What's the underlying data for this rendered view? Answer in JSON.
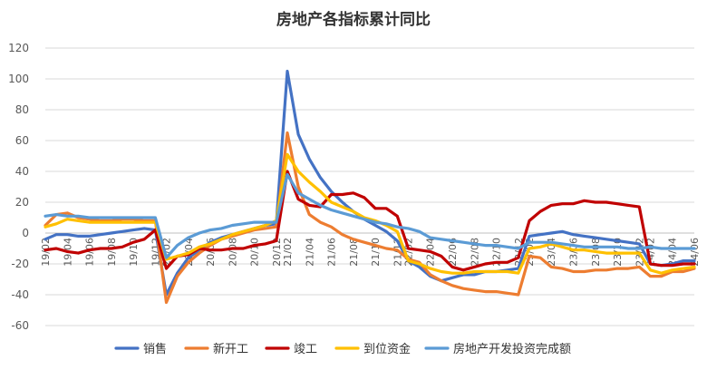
{
  "chart_data": {
    "type": "line",
    "title": "房地产各指标累计同比",
    "ylim": [
      -60,
      120
    ],
    "yticks": [
      -60,
      -40,
      -20,
      0,
      20,
      40,
      60,
      80,
      100,
      120
    ],
    "grid": true,
    "legend_position": "bottom",
    "x_labels": [
      "19/02",
      "19/04",
      "19/06",
      "19/08",
      "19/10",
      "19/12",
      "20/02",
      "20/04",
      "20/06",
      "20/08",
      "20/10",
      "20/12",
      "21/02",
      "21/04",
      "21/06",
      "21/08",
      "21/10",
      "21/12",
      "22/02",
      "22/04",
      "22/06",
      "22/08",
      "22/10",
      "22/12",
      "23/02",
      "23/04",
      "23/06",
      "23/08",
      "23/10",
      "23/12",
      "24/02",
      "24/04",
      "24/06"
    ],
    "x": [
      "19/02",
      "19/03",
      "19/04",
      "19/05",
      "19/06",
      "19/07",
      "19/08",
      "19/09",
      "19/10",
      "19/11",
      "19/12",
      "20/02",
      "20/03",
      "20/04",
      "20/05",
      "20/06",
      "20/07",
      "20/08",
      "20/09",
      "20/10",
      "20/11",
      "20/12",
      "21/02",
      "21/03",
      "21/04",
      "21/05",
      "21/06",
      "21/07",
      "21/08",
      "21/09",
      "21/10",
      "21/11",
      "21/12",
      "22/02",
      "22/03",
      "22/04",
      "22/05",
      "22/06",
      "22/07",
      "22/08",
      "22/09",
      "22/10",
      "22/11",
      "22/12",
      "23/02",
      "23/03",
      "23/04",
      "23/05",
      "23/06",
      "23/07",
      "23/08",
      "23/09",
      "23/10",
      "23/11",
      "23/12",
      "24/02",
      "24/03",
      "24/04",
      "24/05",
      "24/06"
    ],
    "series": [
      {
        "name": "销售",
        "color": "#4472C4",
        "values": [
          -4,
          -1,
          -1,
          -2,
          -2,
          -1,
          0,
          1,
          2,
          3,
          2,
          -40,
          -26,
          -16,
          -11,
          -6,
          -3,
          -1,
          1,
          3,
          5,
          6,
          105,
          64,
          48,
          36,
          27,
          20,
          14,
          9,
          5,
          1,
          -5,
          -18,
          -22,
          -28,
          -31,
          -29,
          -27,
          -27,
          -25,
          -25,
          -24,
          -23,
          -2,
          -1,
          0,
          1,
          -1,
          -2,
          -3,
          -4,
          -5,
          -6,
          -7,
          -20,
          -21,
          -20,
          -18,
          -18
        ]
      },
      {
        "name": "新开工",
        "color": "#ED7D31",
        "values": [
          5,
          12,
          13,
          10,
          9,
          8,
          8,
          9,
          9,
          8,
          8,
          -45,
          -28,
          -19,
          -13,
          -8,
          -4,
          -2,
          0,
          2,
          3,
          4,
          65,
          30,
          12,
          7,
          4,
          -1,
          -4,
          -6,
          -8,
          -10,
          -11,
          -17,
          -19,
          -27,
          -31,
          -34,
          -36,
          -37,
          -38,
          -38,
          -39,
          -40,
          -15,
          -16,
          -22,
          -23,
          -25,
          -25,
          -24,
          -24,
          -23,
          -23,
          -22,
          -28,
          -28,
          -25,
          -25,
          -23
        ]
      },
      {
        "name": "竣工",
        "color": "#C00000",
        "values": [
          -11,
          -10,
          -12,
          -13,
          -11,
          -10,
          -10,
          -9,
          -6,
          -4,
          2,
          -23,
          -15,
          -14,
          -10,
          -11,
          -11,
          -10,
          -10,
          -8,
          -7,
          -5,
          40,
          22,
          18,
          17,
          25,
          25,
          26,
          23,
          16,
          16,
          11,
          -10,
          -11,
          -12,
          -15,
          -22,
          -24,
          -22,
          -20,
          -19,
          -19,
          -16,
          8,
          14,
          18,
          19,
          19,
          21,
          20,
          20,
          19,
          18,
          17,
          -20,
          -21,
          -21,
          -20,
          -20
        ]
      },
      {
        "name": "到位资金",
        "color": "#FFC000",
        "values": [
          4,
          6,
          9,
          8,
          7,
          7,
          7,
          7,
          7,
          7,
          7,
          -17,
          -15,
          -13,
          -9,
          -7,
          -4,
          -1,
          1,
          3,
          5,
          8,
          51,
          40,
          33,
          27,
          20,
          17,
          14,
          10,
          8,
          5,
          1,
          -18,
          -20,
          -23,
          -25,
          -26,
          -26,
          -25,
          -25,
          -25,
          -25,
          -26,
          -10,
          -9,
          -7,
          -9,
          -11,
          -11,
          -12,
          -13,
          -13,
          -13,
          -13,
          -24,
          -26,
          -24,
          -23,
          -22
        ]
      },
      {
        "name": "房地产开发投资完成额",
        "color": "#5B9BD5",
        "values": [
          11,
          12,
          11,
          11,
          10,
          10,
          10,
          10,
          10,
          10,
          10,
          -16,
          -8,
          -3,
          0,
          2,
          3,
          5,
          6,
          7,
          7,
          7,
          38,
          26,
          22,
          18,
          15,
          13,
          11,
          9,
          7,
          6,
          4,
          3,
          1,
          -3,
          -4,
          -5,
          -6,
          -7,
          -8,
          -8,
          -9,
          -10,
          -6,
          -6,
          -6,
          -7,
          -8,
          -9,
          -9,
          -9,
          -9,
          -10,
          -10,
          -9,
          -10,
          -10,
          -10,
          -10
        ]
      }
    ]
  }
}
